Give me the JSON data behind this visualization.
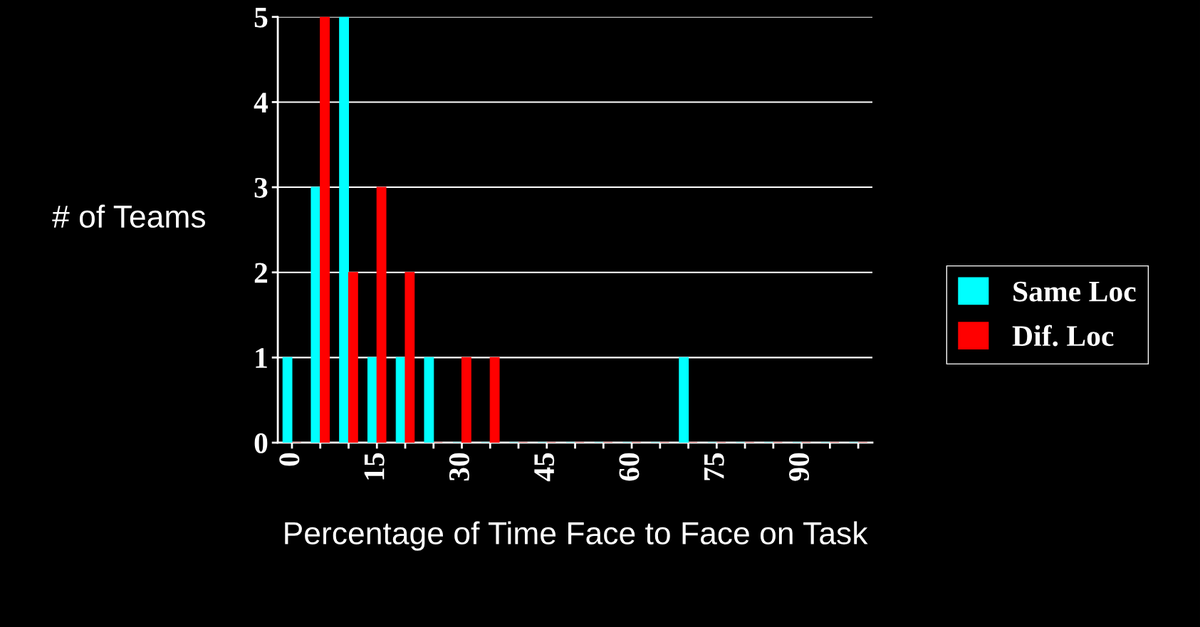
{
  "chart_data": {
    "type": "bar",
    "xlabel": "Percentage of Time Face to Face on Task",
    "ylabel": "# of Teams",
    "categories": [
      "0",
      null,
      null,
      "15",
      null,
      null,
      "30",
      null,
      null,
      "45",
      null,
      null,
      "60",
      null,
      null,
      "75",
      null,
      null,
      "90",
      null,
      null
    ],
    "series": [
      {
        "name": "Same Loc",
        "color": "#00ffff",
        "values": [
          1,
          3,
          5,
          1,
          1,
          1,
          0,
          0,
          0,
          0,
          0,
          0,
          0,
          0,
          1,
          0,
          0,
          0,
          0,
          0,
          0
        ]
      },
      {
        "name": "Dif. Loc",
        "color": "#ff0000",
        "values": [
          0,
          5,
          2,
          3,
          2,
          0,
          1,
          1,
          0,
          0,
          0,
          0,
          0,
          0,
          0,
          0,
          0,
          0,
          0,
          0,
          0
        ]
      }
    ],
    "ylim": [
      0,
      5
    ],
    "yticks": [
      0,
      1,
      2,
      3,
      4,
      5
    ],
    "grid": "y",
    "legend": "right"
  }
}
